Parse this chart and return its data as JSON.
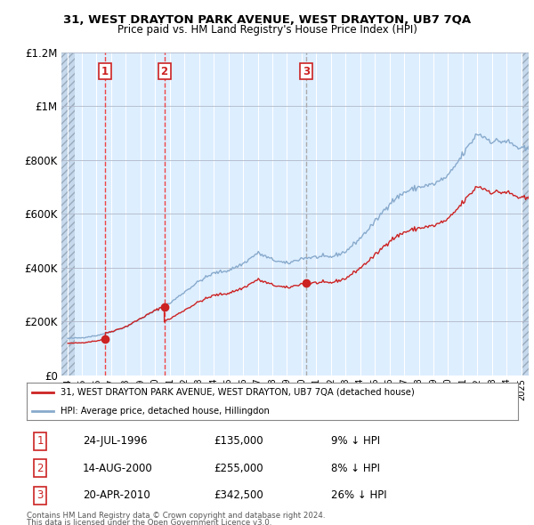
{
  "title1": "31, WEST DRAYTON PARK AVENUE, WEST DRAYTON, UB7 7QA",
  "title2": "Price paid vs. HM Land Registry's House Price Index (HPI)",
  "legend_line1": "31, WEST DRAYTON PARK AVENUE, WEST DRAYTON, UB7 7QA (detached house)",
  "legend_line2": "HPI: Average price, detached house, Hillingdon",
  "footer1": "Contains HM Land Registry data © Crown copyright and database right 2024.",
  "footer2": "This data is licensed under the Open Government Licence v3.0.",
  "sales": [
    {
      "num": 1,
      "date": "24-JUL-1996",
      "price": 135000,
      "pct": "9%",
      "dir": "↓",
      "x": 1996.56
    },
    {
      "num": 2,
      "date": "14-AUG-2000",
      "price": 255000,
      "pct": "8%",
      "dir": "↓",
      "x": 2000.62
    },
    {
      "num": 3,
      "date": "20-APR-2010",
      "price": 342500,
      "pct": "26%",
      "dir": "↓",
      "x": 2010.3
    }
  ],
  "hpi_color": "#88aacc",
  "price_color": "#cc2222",
  "dashed_color_red": "#ee4444",
  "dashed_color_grey": "#aaaaaa",
  "bg_plot": "#ddeeff",
  "bg_hatch_color": "#c5d8ec",
  "ylim": [
    0,
    1200000
  ],
  "xlim_start": 1993.6,
  "xlim_end": 2025.5,
  "hatch_end": 1994.5,
  "hatch_start_right": 2025.0
}
